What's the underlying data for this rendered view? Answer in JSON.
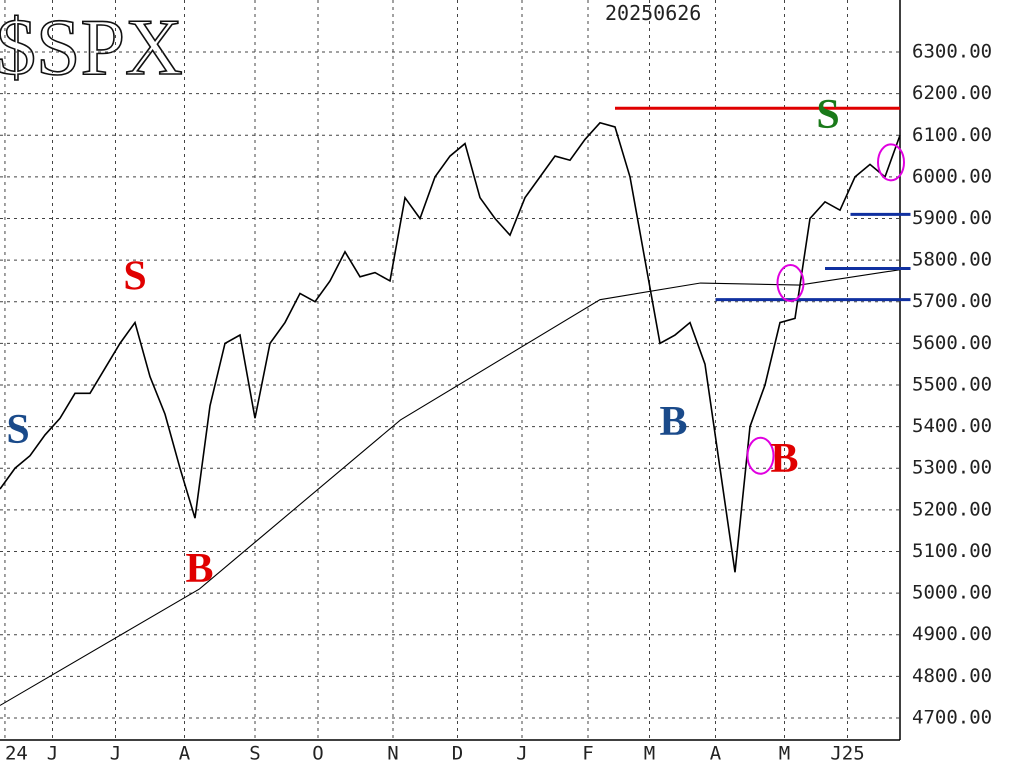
{
  "chart_data": {
    "type": "line",
    "title": "$SPX",
    "subtitle": "20250626",
    "xlim": [
      0,
      60
    ],
    "ylim": [
      4647,
      6425
    ],
    "xticks": [
      {
        "value": 0.33,
        "label": "24"
      },
      {
        "value": 3.5,
        "label": "J"
      },
      {
        "value": 7.7,
        "label": "J"
      },
      {
        "value": 12.3,
        "label": "A"
      },
      {
        "value": 17,
        "label": "S"
      },
      {
        "value": 21.2,
        "label": "O"
      },
      {
        "value": 26.2,
        "label": "N"
      },
      {
        "value": 30.5,
        "label": "D"
      },
      {
        "value": 34.8,
        "label": "J"
      },
      {
        "value": 39.2,
        "label": "F"
      },
      {
        "value": 43.3,
        "label": "M"
      },
      {
        "value": 47.7,
        "label": "A"
      },
      {
        "value": 52.3,
        "label": "M"
      },
      {
        "value": 56.5,
        "label": "J25"
      }
    ],
    "yticks": [
      {
        "value": 4700,
        "label": "4700.00"
      },
      {
        "value": 4800,
        "label": "4800.00"
      },
      {
        "value": 4900,
        "label": "4900.00"
      },
      {
        "value": 5000,
        "label": "5000.00"
      },
      {
        "value": 5100,
        "label": "5100.00"
      },
      {
        "value": 5200,
        "label": "5200.00"
      },
      {
        "value": 5300,
        "label": "5300.00"
      },
      {
        "value": 5400,
        "label": "5400.00"
      },
      {
        "value": 5500,
        "label": "5500.00"
      },
      {
        "value": 5600,
        "label": "5600.00"
      },
      {
        "value": 5700,
        "label": "5700.00"
      },
      {
        "value": 5800,
        "label": "5800.00"
      },
      {
        "value": 5900,
        "label": "5900.00"
      },
      {
        "value": 6000,
        "label": "6000.00"
      },
      {
        "value": 6100,
        "label": "6100.00"
      },
      {
        "value": 6200,
        "label": "6200.00"
      },
      {
        "value": 6300,
        "label": "6300.00"
      }
    ],
    "grid": true,
    "series": [
      {
        "color": "#000000",
        "x": [
          0,
          1,
          2,
          3,
          4,
          5,
          6,
          7,
          8,
          9,
          10,
          11,
          12,
          13,
          14,
          15,
          16,
          17,
          18,
          19,
          20,
          21,
          22,
          23,
          24,
          25,
          26,
          27,
          28,
          29,
          30,
          31,
          32,
          33,
          34,
          35,
          36,
          37,
          38,
          39,
          40,
          41,
          42,
          43,
          44,
          45,
          46,
          47,
          48,
          49,
          50,
          51,
          52,
          53,
          54,
          55,
          56,
          57,
          58,
          59,
          60
        ],
        "values": [
          5250,
          5300,
          5330,
          5380,
          5420,
          5480,
          5480,
          5540,
          5600,
          5650,
          5520,
          5430,
          5300,
          5180,
          5450,
          5600,
          5620,
          5420,
          5600,
          5650,
          5720,
          5700,
          5750,
          5820,
          5760,
          5770,
          5750,
          5950,
          5900,
          6000,
          6050,
          6080,
          5950,
          5900,
          5860,
          5950,
          6000,
          6050,
          6040,
          6090,
          6130,
          6120,
          6000,
          5800,
          5600,
          5620,
          5650,
          5550,
          5300,
          5050,
          5400,
          5500,
          5650,
          5660,
          5900,
          5940,
          5920,
          6000,
          6030,
          6000,
          6100
        ]
      },
      {
        "color": "#000000",
        "x": [
          0,
          13.3,
          26.7,
          40,
          46.7,
          53.3,
          60
        ],
        "values": [
          4730,
          5010,
          5416,
          5705,
          5745,
          5740,
          5777
        ]
      }
    ],
    "hlines": [
      {
        "y": 6165,
        "x": [
          41,
          60
        ],
        "color": "#e00000"
      },
      {
        "y": 5910,
        "x": [
          56.7,
          60.7
        ],
        "color": "#1030a0"
      },
      {
        "y": 5780,
        "x": [
          55,
          60.7
        ],
        "color": "#1030a0"
      },
      {
        "y": 5705,
        "x": [
          47.7,
          60.7
        ],
        "color": "#1030a0"
      }
    ],
    "annotations": [
      {
        "text": "S",
        "x": 1.2,
        "y": 5397,
        "color": "#1a4a8a"
      },
      {
        "text": "S",
        "x": 9,
        "y": 5765,
        "color": "#e00000"
      },
      {
        "text": "B",
        "x": 13.3,
        "y": 5063,
        "color": "#e00000"
      },
      {
        "text": "B",
        "x": 44.9,
        "y": 5416,
        "color": "#1a4a8a"
      },
      {
        "text": "B",
        "x": 52.3,
        "y": 5327,
        "color": "#e00000"
      },
      {
        "text": "S",
        "x": 55.2,
        "y": 6154,
        "color": "#1a7a1a"
      }
    ],
    "circles": [
      {
        "x": 59.4,
        "y": 6035,
        "color": "#e000e0"
      },
      {
        "x": 52.7,
        "y": 5745,
        "color": "#e000e0"
      },
      {
        "x": 50.7,
        "y": 5330,
        "color": "#e000e0"
      }
    ]
  }
}
